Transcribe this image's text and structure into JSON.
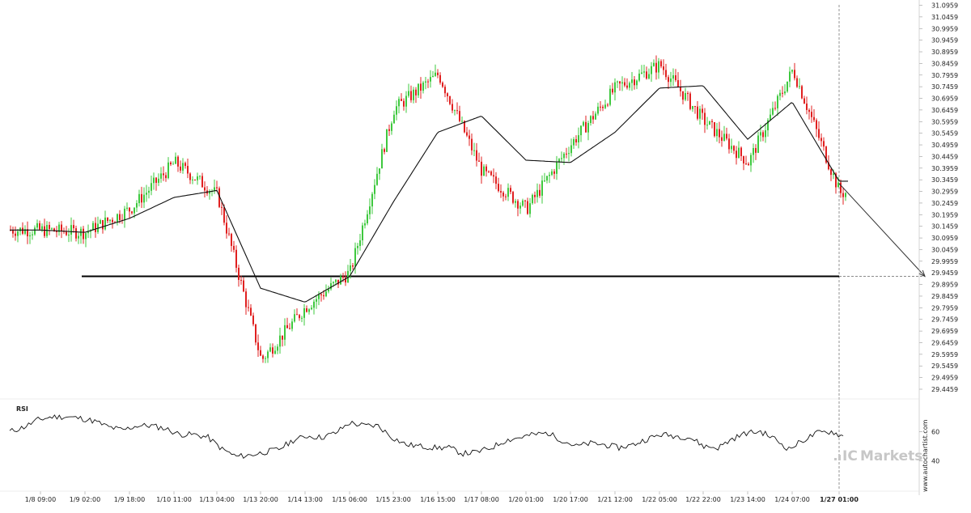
{
  "chart_data": [
    {
      "type": "candlestick",
      "title": "",
      "y_ticks": [
        "31.0959",
        "31.0459",
        "30.9959",
        "30.9459",
        "30.8959",
        "30.8459",
        "30.7959",
        "30.7459",
        "30.6959",
        "30.6459",
        "30.5959",
        "30.5459",
        "30.4959",
        "30.4459",
        "30.3959",
        "30.3459",
        "30.2959",
        "30.2459",
        "30.1959",
        "30.1459",
        "30.0959",
        "30.0459",
        "29.9959",
        "29.9459",
        "29.8959",
        "29.8459",
        "29.7959",
        "29.7459",
        "29.6959",
        "29.6459",
        "29.5959",
        "29.5459",
        "29.4959",
        "29.4459"
      ],
      "ylim": [
        29.4459,
        31.0959
      ],
      "x_ticks": [
        "1/8 09:00",
        "1/9 02:00",
        "1/9 18:00",
        "1/10 11:00",
        "1/13 04:00",
        "1/13 20:00",
        "1/14 13:00",
        "1/15 06:00",
        "1/15 23:00",
        "1/16 15:00",
        "1/17 08:00",
        "1/20 01:00",
        "1/20 17:00",
        "1/21 12:00",
        "1/22 05:00",
        "1/22 22:00",
        "1/23 14:00",
        "1/24 07:00",
        "1/27 01:00"
      ],
      "highlighted_x_tick": "1/27 01:00",
      "up_color": "#3ec83e",
      "down_color": "#e02020",
      "price_path": [
        {
          "x": "1/8 09:00",
          "y": 30.13
        },
        {
          "x": "1/9 02:00",
          "y": 30.12
        },
        {
          "x": "1/9 18:00",
          "y": 30.22
        },
        {
          "x": "1/10 11:00",
          "y": 30.42
        },
        {
          "x": "1/13 04:00",
          "y": 30.28
        },
        {
          "x": "1/13 20:00",
          "y": 29.57
        },
        {
          "x": "1/14 13:00",
          "y": 29.8
        },
        {
          "x": "1/15 06:00",
          "y": 29.95
        },
        {
          "x": "1/15 23:00",
          "y": 30.65
        },
        {
          "x": "1/16 15:00",
          "y": 30.8
        },
        {
          "x": "1/17 08:00",
          "y": 30.38
        },
        {
          "x": "1/20 01:00",
          "y": 30.22
        },
        {
          "x": "1/20 17:00",
          "y": 30.5
        },
        {
          "x": "1/21 12:00",
          "y": 30.74
        },
        {
          "x": "1/22 05:00",
          "y": 30.84
        },
        {
          "x": "1/22 22:00",
          "y": 30.6
        },
        {
          "x": "1/23 14:00",
          "y": 30.42
        },
        {
          "x": "1/24 07:00",
          "y": 30.82
        },
        {
          "x": "1/27 01:00",
          "y": 30.29
        }
      ],
      "moving_average": [
        {
          "x": "1/8 09:00",
          "y": 30.13
        },
        {
          "x": "1/9 02:00",
          "y": 30.12
        },
        {
          "x": "1/9 18:00",
          "y": 30.18
        },
        {
          "x": "1/10 11:00",
          "y": 30.27
        },
        {
          "x": "1/13 04:00",
          "y": 30.3
        },
        {
          "x": "1/13 20:00",
          "y": 29.88
        },
        {
          "x": "1/14 13:00",
          "y": 29.82
        },
        {
          "x": "1/15 06:00",
          "y": 29.93
        },
        {
          "x": "1/15 23:00",
          "y": 30.25
        },
        {
          "x": "1/16 15:00",
          "y": 30.55
        },
        {
          "x": "1/17 08:00",
          "y": 30.62
        },
        {
          "x": "1/20 01:00",
          "y": 30.43
        },
        {
          "x": "1/20 17:00",
          "y": 30.42
        },
        {
          "x": "1/21 12:00",
          "y": 30.55
        },
        {
          "x": "1/22 05:00",
          "y": 30.74
        },
        {
          "x": "1/22 22:00",
          "y": 30.75
        },
        {
          "x": "1/23 14:00",
          "y": 30.52
        },
        {
          "x": "1/24 07:00",
          "y": 30.68
        },
        {
          "x": "1/27 01:00",
          "y": 30.34
        }
      ],
      "support_level": 29.9309,
      "projection": {
        "from": {
          "x": "1/27 01:00",
          "y": 30.33
        },
        "to_y": 29.9309
      }
    },
    {
      "type": "line",
      "title": "RSI",
      "y_ticks": [
        "60",
        "40"
      ],
      "ylim": [
        20,
        80
      ],
      "values": [
        60,
        63,
        68,
        70,
        70,
        69,
        67,
        63,
        61,
        64,
        64,
        62,
        58,
        58,
        56,
        48,
        43,
        44,
        46,
        48,
        54,
        57,
        56,
        59,
        66,
        64,
        64,
        56,
        51,
        50,
        49,
        49,
        45,
        46,
        49,
        54,
        56,
        58,
        59,
        54,
        50,
        52,
        51,
        49,
        51,
        55,
        58,
        57,
        56,
        50,
        49,
        55,
        59,
        60,
        55,
        48,
        54,
        59,
        60,
        56
      ]
    }
  ],
  "watermark": "www.autochartist.com",
  "brand": {
    "ic": "IC",
    "rest": "Markets"
  }
}
